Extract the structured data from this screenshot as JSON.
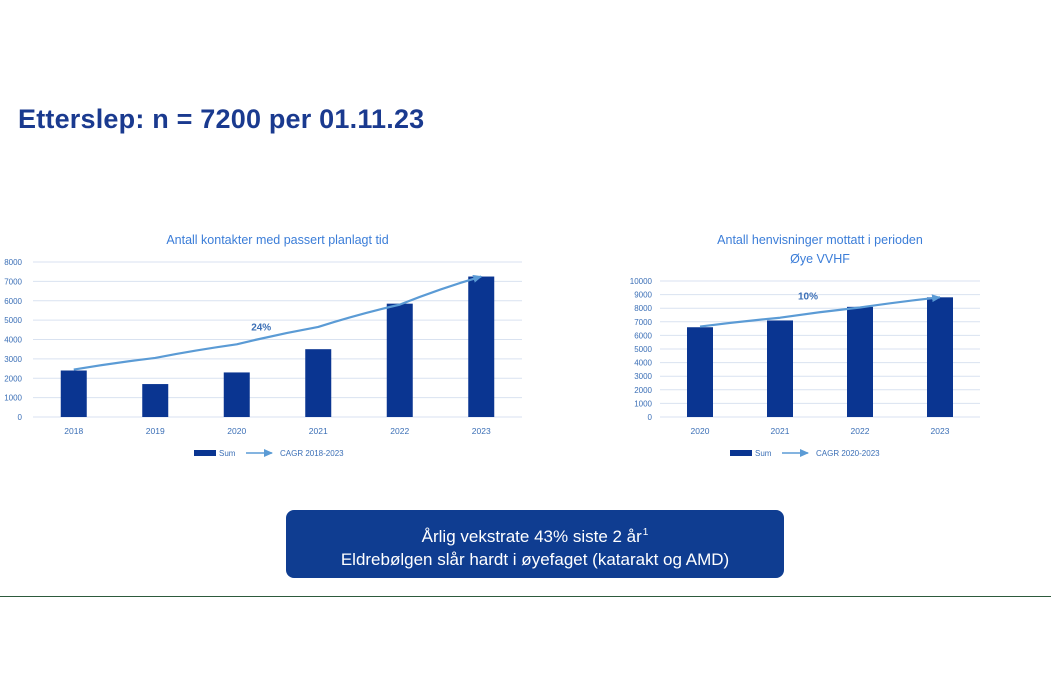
{
  "page": {
    "title": "Etterslep: n = 7200 per 01.11.23"
  },
  "callout": {
    "line1": "Årlig vekstrate 43% siste 2 år",
    "line1_sup": "1",
    "line2": "Eldrebølgen slår hardt i øyefaget (katarakt og AMD)"
  },
  "colors": {
    "title": "#1a3a8f",
    "bar": "#0a3591",
    "trend": "#5b9bd5",
    "axis_text": "#3b6fb6",
    "grid": "#d9e2f0",
    "callout_bg": "#0f3d91"
  },
  "chart_data": [
    {
      "type": "bar",
      "title": "Antall kontakter med passert planlagt tid",
      "categories": [
        "2018",
        "2019",
        "2020",
        "2021",
        "2022",
        "2023"
      ],
      "series": [
        {
          "name": "Sum",
          "values": [
            2400,
            1700,
            2300,
            3500,
            5850,
            7250
          ]
        }
      ],
      "trend": {
        "name": "CAGR 2018-2023",
        "label": "24%",
        "values": [
          2450,
          3050,
          3750,
          4650,
          5800,
          7250
        ]
      },
      "ylim": [
        0,
        8000
      ],
      "yticks": [
        0,
        1000,
        2000,
        3000,
        4000,
        5000,
        6000,
        7000,
        8000
      ],
      "ytick_labels": [
        "0",
        "1000",
        "2000",
        "3000",
        "4000",
        "5000",
        "6000",
        "7000",
        "8000"
      ],
      "grid": true,
      "legend": "bottom"
    },
    {
      "type": "bar",
      "title": "Antall henvisninger mottatt i perioden",
      "subtitle": "Øye VVHF",
      "categories": [
        "2020",
        "2021",
        "2022",
        "2023"
      ],
      "series": [
        {
          "name": "Sum",
          "values": [
            6600,
            7100,
            8100,
            8800
          ]
        }
      ],
      "trend": {
        "name": "CAGR 2020-2023",
        "label": "10%",
        "values": [
          6650,
          7300,
          8050,
          8800
        ]
      },
      "ylim": [
        0,
        10000
      ],
      "yticks": [
        0,
        1000,
        2000,
        3000,
        4000,
        5000,
        6000,
        7000,
        8000,
        9000,
        10000
      ],
      "ytick_labels": [
        "0",
        "1000",
        "2000",
        "3000",
        "4000",
        "5000",
        "6000",
        "7000",
        "8000",
        "9000",
        "10000"
      ],
      "grid": true,
      "legend": "bottom"
    }
  ]
}
